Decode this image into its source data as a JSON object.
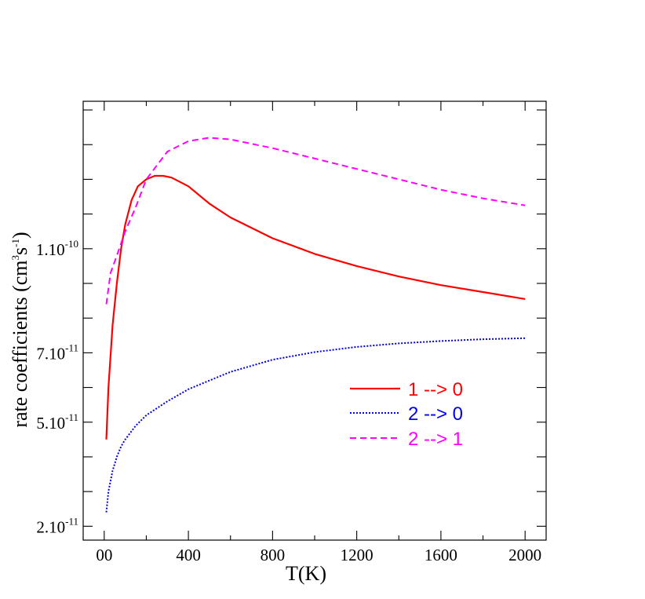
{
  "chart_data": {
    "type": "line",
    "xlabel": "T(K)",
    "ylabel": {
      "main": "rate coefficients (cm",
      "sup1": "3",
      "mid": "s",
      "sup2": "-1",
      "end": ")"
    },
    "xlim": [
      -100,
      2100
    ],
    "ylim": [
      1.6e-11,
      1.425e-10
    ],
    "x_ticks": [
      0,
      400,
      800,
      1200,
      1600,
      2000
    ],
    "x_tick_labels": [
      "00",
      "400",
      "800",
      "1200",
      "1600",
      "2000"
    ],
    "x_minor_ticks": [
      200,
      600,
      1000,
      1400,
      1800
    ],
    "y_ticks": [
      {
        "value": 2e-11,
        "mant": "2.10",
        "exp": "-11"
      },
      {
        "value": 5e-11,
        "mant": "5.10",
        "exp": "-11"
      },
      {
        "value": 7e-11,
        "mant": "7.10",
        "exp": "-11"
      },
      {
        "value": 1e-10,
        "mant": "1.10",
        "exp": "-10"
      }
    ],
    "y_minor_ticks": [
      3e-11,
      4e-11,
      6e-11,
      8e-11,
      9e-11,
      1.1e-10,
      1.2e-10,
      1.3e-10,
      1.4e-10
    ],
    "grid": false,
    "legend_position": "lower-right",
    "series": [
      {
        "name": "1 --> 0",
        "color": "#ff0000",
        "style": "solid",
        "x": [
          10,
          20,
          40,
          60,
          80,
          100,
          130,
          160,
          200,
          240,
          280,
          320,
          400,
          500,
          600,
          800,
          1000,
          1200,
          1400,
          1600,
          1800,
          2000
        ],
        "y": [
          4.5e-11,
          6e-11,
          7.8e-11,
          9e-11,
          1e-10,
          1.07e-10,
          1.14e-10,
          1.18e-10,
          1.2e-10,
          1.21e-10,
          1.21e-10,
          1.205e-10,
          1.18e-10,
          1.13e-10,
          1.09e-10,
          1.03e-10,
          9.85e-11,
          9.5e-11,
          9.2e-11,
          8.95e-11,
          8.75e-11,
          8.55e-11
        ]
      },
      {
        "name": "2 --> 0",
        "color": "#0000ee",
        "style": "dotted",
        "x": [
          10,
          20,
          40,
          60,
          80,
          100,
          150,
          200,
          300,
          400,
          500,
          600,
          800,
          1000,
          1200,
          1400,
          1600,
          1800,
          2000
        ],
        "y": [
          2.4e-11,
          3e-11,
          3.6e-11,
          4e-11,
          4.3e-11,
          4.5e-11,
          4.9e-11,
          5.2e-11,
          5.6e-11,
          5.95e-11,
          6.2e-11,
          6.45e-11,
          6.8e-11,
          7.02e-11,
          7.17e-11,
          7.27e-11,
          7.34e-11,
          7.39e-11,
          7.42e-11
        ]
      },
      {
        "name": "2 --> 1",
        "color": "#ff00ff",
        "style": "dashed",
        "x": [
          10,
          30,
          60,
          100,
          150,
          200,
          300,
          400,
          500,
          600,
          800,
          1000,
          1200,
          1400,
          1600,
          1800,
          2000
        ],
        "y": [
          8.4e-11,
          9.3e-11,
          9.8e-11,
          1.05e-10,
          1.12e-10,
          1.2e-10,
          1.28e-10,
          1.31e-10,
          1.32e-10,
          1.315e-10,
          1.29e-10,
          1.26e-10,
          1.23e-10,
          1.2e-10,
          1.17e-10,
          1.145e-10,
          1.125e-10
        ]
      }
    ]
  }
}
